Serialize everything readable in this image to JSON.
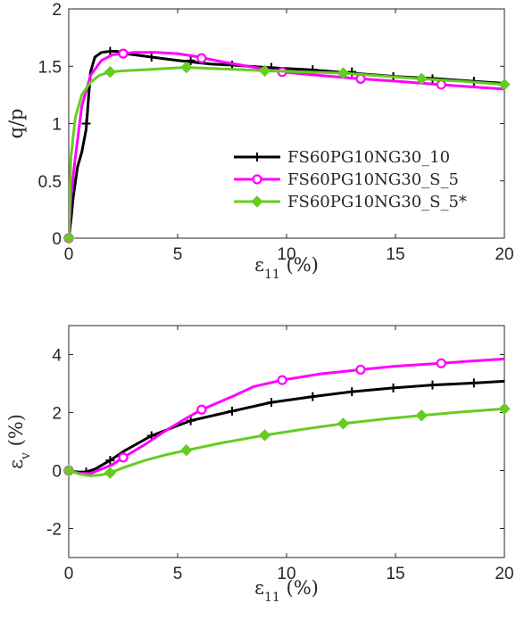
{
  "chart_data": [
    {
      "type": "line",
      "xlabel": "ε11 (%)",
      "ylabel": "q/p",
      "xlim": [
        0,
        20
      ],
      "ylim": [
        0,
        2
      ],
      "xticks": [
        "0",
        "5",
        "10",
        "15",
        "20"
      ],
      "yticks": [
        "0",
        "0.5",
        "1",
        "1.5",
        "2"
      ],
      "grid": false,
      "legend_position": "center-right",
      "legend": [
        "FS60PG10NG30_10",
        "FS60PG10NG30_S_5",
        "FS60PG10NG30_S_5*"
      ],
      "series": [
        {
          "name": "FS60PG10NG30_10",
          "color": "#000000",
          "marker": "plus",
          "x": [
            0,
            0.1,
            0.2,
            0.4,
            0.6,
            0.8,
            1.0,
            1.2,
            1.5,
            1.9,
            2.2,
            2.6,
            3.0,
            3.8,
            5.0,
            6.5,
            7.5,
            9.0,
            11.0,
            13.0,
            15.0,
            17.0,
            18.5,
            20.0
          ],
          "y": [
            0,
            0.15,
            0.35,
            0.62,
            0.75,
            0.95,
            1.45,
            1.58,
            1.62,
            1.63,
            1.63,
            1.61,
            1.6,
            1.58,
            1.55,
            1.52,
            1.51,
            1.49,
            1.47,
            1.44,
            1.41,
            1.39,
            1.37,
            1.35
          ],
          "marker_x": [
            0,
            0.8,
            1.9,
            3.8,
            5.6,
            7.5,
            9.3,
            11.2,
            13.0,
            14.9,
            16.7,
            18.6
          ],
          "marker_y": [
            0,
            1.0,
            1.63,
            1.58,
            1.55,
            1.51,
            1.49,
            1.47,
            1.45,
            1.41,
            1.39,
            1.37
          ]
        },
        {
          "name": "FS60PG10NG30_S_5",
          "color": "#ff00ff",
          "marker": "circle",
          "x": [
            0,
            0.1,
            0.3,
            0.6,
            1.0,
            1.5,
            2.0,
            2.5,
            3.0,
            4.0,
            5.0,
            6.0,
            7.0,
            8.5,
            9.8,
            11.5,
            13.4,
            15.0,
            17.0,
            18.5,
            20.0
          ],
          "y": [
            0,
            0.35,
            0.7,
            1.15,
            1.42,
            1.55,
            1.6,
            1.61,
            1.62,
            1.62,
            1.61,
            1.58,
            1.54,
            1.49,
            1.45,
            1.42,
            1.39,
            1.37,
            1.34,
            1.32,
            1.3
          ],
          "marker_x": [
            0,
            2.5,
            6.1,
            9.8,
            13.4,
            17.1
          ],
          "marker_y": [
            0,
            1.61,
            1.57,
            1.45,
            1.39,
            1.34
          ]
        },
        {
          "name": "FS60PG10NG30_S_5*",
          "color": "#66cc22",
          "marker": "diamond",
          "x": [
            0,
            0.1,
            0.3,
            0.6,
            1.0,
            1.4,
            1.9,
            2.5,
            3.5,
            4.5,
            5.4,
            6.5,
            8.0,
            9.0,
            11.0,
            12.6,
            14.0,
            16.2,
            18.0,
            20.0
          ],
          "y": [
            0,
            0.7,
            1.05,
            1.25,
            1.36,
            1.42,
            1.45,
            1.46,
            1.47,
            1.48,
            1.49,
            1.48,
            1.47,
            1.46,
            1.45,
            1.44,
            1.42,
            1.39,
            1.37,
            1.34
          ],
          "marker_x": [
            0,
            1.9,
            5.4,
            9.0,
            12.6,
            16.2,
            20.0
          ],
          "marker_y": [
            0,
            1.45,
            1.49,
            1.46,
            1.44,
            1.39,
            1.34
          ]
        }
      ]
    },
    {
      "type": "line",
      "xlabel": "ε11 (%)",
      "ylabel": "εv (%)",
      "xlim": [
        0,
        20
      ],
      "ylim": [
        -3,
        5
      ],
      "xticks": [
        "0",
        "5",
        "10",
        "15",
        "20"
      ],
      "yticks": [
        "-2",
        "0",
        "2",
        "4"
      ],
      "grid": false,
      "series": [
        {
          "name": "FS60PG10NG30_10",
          "color": "#000000",
          "marker": "plus",
          "x": [
            0,
            0.4,
            0.8,
            1.2,
            1.9,
            2.6,
            3.8,
            5.0,
            5.6,
            7.5,
            9.3,
            11.2,
            13.0,
            14.9,
            16.7,
            18.6,
            20.0
          ],
          "y": [
            0,
            -0.05,
            -0.05,
            0.05,
            0.35,
            0.7,
            1.2,
            1.55,
            1.72,
            2.05,
            2.35,
            2.55,
            2.72,
            2.85,
            2.95,
            3.02,
            3.08
          ],
          "marker_x": [
            0,
            0.8,
            1.9,
            3.8,
            5.6,
            7.5,
            9.3,
            11.2,
            13.0,
            14.9,
            16.7,
            18.6
          ],
          "marker_y": [
            0,
            -0.05,
            0.35,
            1.2,
            1.72,
            2.05,
            2.35,
            2.55,
            2.72,
            2.85,
            2.95,
            3.02
          ]
        },
        {
          "name": "FS60PG10NG30_S_5",
          "color": "#ff00ff",
          "marker": "circle",
          "x": [
            0,
            0.5,
            1.0,
            1.5,
            2.0,
            2.5,
            3.5,
            4.5,
            5.5,
            6.1,
            7.5,
            8.5,
            9.8,
            11.5,
            13.4,
            15.0,
            17.1,
            18.5,
            20.0
          ],
          "y": [
            0,
            -0.1,
            -0.1,
            0.05,
            0.2,
            0.45,
            0.9,
            1.4,
            1.85,
            2.1,
            2.55,
            2.9,
            3.12,
            3.33,
            3.48,
            3.6,
            3.7,
            3.78,
            3.85
          ],
          "marker_x": [
            0,
            2.5,
            6.1,
            9.8,
            13.4,
            17.1
          ],
          "marker_y": [
            0,
            0.45,
            2.1,
            3.12,
            3.48,
            3.7
          ]
        },
        {
          "name": "FS60PG10NG30_S_5*",
          "color": "#66cc22",
          "marker": "diamond",
          "x": [
            0,
            0.5,
            1.0,
            1.5,
            1.9,
            2.5,
            3.5,
            4.5,
            5.4,
            7.0,
            9.0,
            11.0,
            12.6,
            14.5,
            16.2,
            18.0,
            20.0
          ],
          "y": [
            0,
            -0.12,
            -0.18,
            -0.15,
            -0.08,
            0.1,
            0.35,
            0.55,
            0.7,
            0.95,
            1.22,
            1.45,
            1.62,
            1.78,
            1.9,
            2.02,
            2.13
          ],
          "marker_x": [
            0,
            1.9,
            5.4,
            9.0,
            12.6,
            16.2,
            20.0
          ],
          "marker_y": [
            0,
            -0.08,
            0.7,
            1.22,
            1.62,
            1.9,
            2.13
          ]
        }
      ]
    }
  ]
}
